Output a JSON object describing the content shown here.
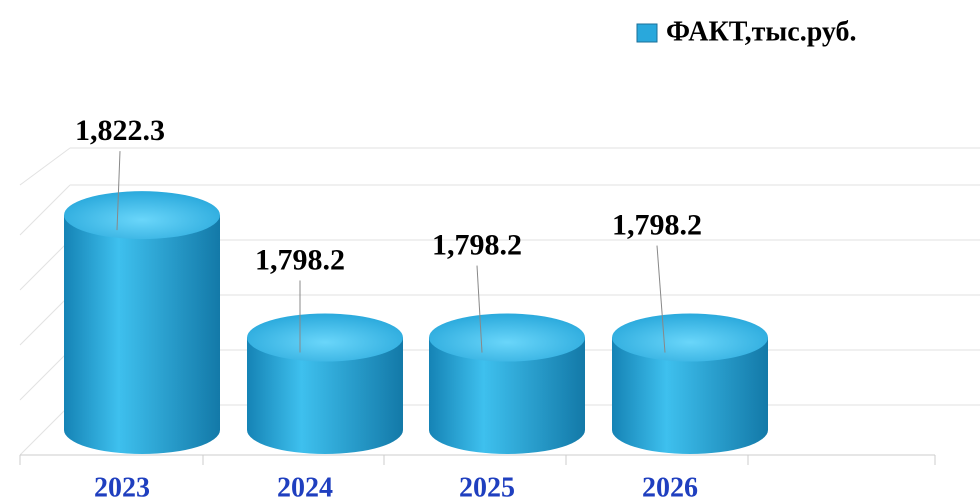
{
  "chart_data": {
    "type": "bar",
    "categories": [
      "2023",
      "2024",
      "2025",
      "2026"
    ],
    "series": [
      {
        "name": "ФАКТ,тыс.руб.",
        "color": "#29a8dc",
        "values": [
          1822.3,
          1798.2,
          1798.2,
          1798.2
        ],
        "value_labels": [
          "1,822.3",
          "1,798.2",
          "1,798.2",
          "1,798.2"
        ]
      }
    ],
    "ylim": [
      1780,
      1830
    ],
    "legend": "top-right"
  }
}
